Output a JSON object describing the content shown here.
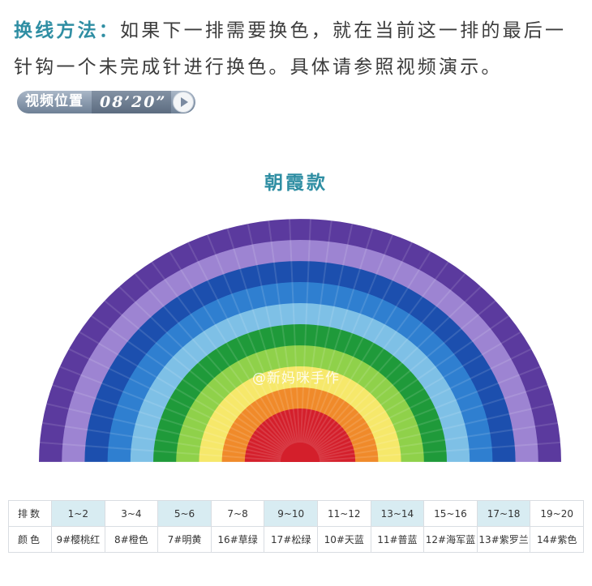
{
  "intro": {
    "lead": "换线方法：",
    "body": "如果下一排需要换色，就在当前这一排的最后一针钩一个未完成针进行换色。具体请参照视频演示。"
  },
  "video_badge": {
    "label": "视频位置",
    "time": "08’20”"
  },
  "style_title": "朝霞款",
  "watermark": "@新妈咪手作",
  "rug": {
    "bands_outer_to_inner": [
      "#5b3a9e",
      "#9d84d2",
      "#1c4fae",
      "#2f7fd0",
      "#7ec0e6",
      "#1f9a3a",
      "#8fd14a",
      "#f6e86a",
      "#f08a2a",
      "#d41f2b"
    ]
  },
  "table": {
    "row_labels": [
      "排数",
      "颜色"
    ],
    "rows": [
      "1~2",
      "3~4",
      "5~6",
      "7~8",
      "9~10",
      "11~12",
      "13~14",
      "15~16",
      "17~18",
      "19~20"
    ],
    "colors": [
      "9#樱桃红",
      "8#橙色",
      "7#明黄",
      "16#草绿",
      "17#松绿",
      "10#天蓝",
      "11#普蓝",
      "12#海军蓝",
      "13#紫罗兰",
      "14#紫色"
    ]
  }
}
